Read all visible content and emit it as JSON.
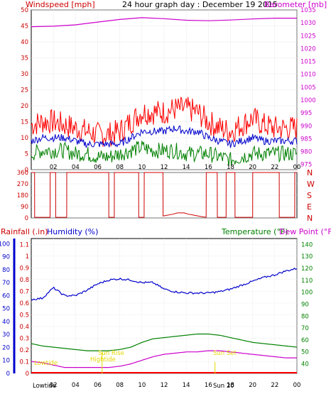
{
  "title": "24 hour graph day : December 19 2015",
  "colors": {
    "wind": "#ff0000",
    "gust": "#ff0000",
    "avg": "#0000cc",
    "low": "#008000",
    "baro": "#cc00cc",
    "dir": "#cc0000",
    "rain": "#ff0000",
    "hum": "#0000cc",
    "temp": "#008000",
    "dew": "#cc00cc",
    "sun": "#e6d800",
    "axis": "#000000",
    "grid": "#ffffff"
  },
  "labels": {
    "windspeed": "Windspeed [mph]",
    "barometer": "Barometer [mb]",
    "rainfall": "Rainfall (.in)",
    "humidity": "Humidity (%)",
    "temperature": "Temperature (°F)",
    "dewpoint": "Dew Point (°F)",
    "compass": [
      "N",
      "W",
      "S",
      "E",
      "N"
    ]
  },
  "markers": {
    "lowtide": "Lowtide",
    "hightide": "Hightide",
    "sun_rise": "Sun Rise",
    "sun_set": "Sun Set",
    "sun_label": "Sun 20"
  },
  "chart_data": [
    {
      "type": "line",
      "title": "24 hour graph day : December 19 2015",
      "x_ticks": [
        "02",
        "04",
        "06",
        "08",
        "10",
        "12",
        "14",
        "16",
        "18",
        "20",
        "22",
        "00"
      ],
      "y_left": {
        "label": "Windspeed [mph]",
        "ticks": [
          "0",
          "5",
          "10",
          "15",
          "20",
          "25",
          "30",
          "35",
          "40",
          "45",
          "50"
        ],
        "range": [
          0,
          50
        ]
      },
      "y_right": {
        "label": "Barometer [mb]",
        "ticks": [
          "975",
          "980",
          "985",
          "990",
          "995",
          "1000",
          "1005",
          "1010",
          "1015",
          "1020",
          "1025",
          "1030",
          "1035"
        ],
        "range": [
          973,
          1035
        ]
      },
      "series": [
        {
          "name": "Windspeed [mph]",
          "role": "gust",
          "x": [
            0,
            1,
            2,
            3,
            4,
            5,
            6,
            7,
            8,
            9,
            10,
            11,
            12,
            13,
            14,
            15,
            16,
            17,
            18,
            19,
            20,
            21,
            22,
            23,
            24
          ],
          "y": [
            14,
            15,
            15,
            14,
            13,
            12,
            11,
            11,
            12,
            15,
            18,
            18,
            18,
            19,
            19,
            18,
            15,
            13,
            12,
            14,
            16,
            14,
            13,
            13,
            13
          ]
        },
        {
          "name": "average",
          "role": "avg",
          "x": [
            0,
            1,
            2,
            3,
            4,
            5,
            6,
            7,
            8,
            9,
            10,
            11,
            12,
            13,
            14,
            15,
            16,
            17,
            18,
            19,
            20,
            21,
            22,
            23,
            24
          ],
          "y": [
            9,
            10,
            10,
            10,
            9,
            8,
            8,
            8,
            8,
            10,
            12,
            12,
            12,
            13,
            12,
            12,
            10,
            9,
            8,
            9,
            10,
            9,
            9,
            9,
            9
          ]
        },
        {
          "name": "low",
          "role": "low",
          "x": [
            0,
            1,
            2,
            3,
            4,
            5,
            6,
            7,
            8,
            9,
            10,
            11,
            12,
            13,
            14,
            15,
            16,
            17,
            18,
            19,
            20,
            21,
            22,
            23,
            24
          ],
          "y": [
            5,
            6,
            6,
            6,
            5,
            5,
            4,
            4,
            5,
            6,
            7,
            6,
            6,
            6,
            5,
            5,
            5,
            4,
            3,
            4,
            5,
            5,
            5,
            5,
            5
          ]
        },
        {
          "name": "Barometer [mb]",
          "role": "baro",
          "x": [
            0,
            2,
            4,
            6,
            8,
            10,
            12,
            14,
            16,
            18,
            20,
            22,
            24
          ],
          "y": [
            1028.5,
            1028.7,
            1029.2,
            1030.3,
            1031.3,
            1032.0,
            1031.6,
            1031.0,
            1030.8,
            1031.1,
            1031.5,
            1031.8,
            1031.8
          ]
        }
      ]
    },
    {
      "type": "line",
      "x_ticks": [
        "02",
        "04",
        "06",
        "08",
        "10",
        "12",
        "14",
        "16",
        "18",
        "20",
        "22",
        "00"
      ],
      "y_left": {
        "ticks": [
          "0",
          "90",
          "180",
          "270",
          "360"
        ],
        "range": [
          0,
          360
        ]
      },
      "y_right": {
        "ticks": [
          "N",
          "W",
          "S",
          "E",
          "N"
        ]
      },
      "series": [
        {
          "name": "wind direction",
          "x": [
            0,
            0.3,
            0.31,
            1.7,
            1.71,
            2.2,
            2.21,
            3.2,
            3.21,
            7.0,
            7.01,
            7.5,
            7.51,
            9.7,
            9.71,
            10.2,
            10.21,
            11.9,
            11.91,
            12.8,
            13.2,
            13.8,
            14.2,
            14.8,
            15.4,
            15.8,
            15.81,
            16.8,
            16.81,
            17.6,
            17.61,
            18.4,
            18.41,
            20.0,
            20.01,
            22.4,
            22.41,
            23.8,
            23.81,
            24
          ],
          "y": [
            360,
            360,
            5,
            5,
            360,
            360,
            5,
            5,
            360,
            360,
            5,
            5,
            360,
            360,
            5,
            5,
            360,
            360,
            15,
            30,
            40,
            40,
            30,
            20,
            10,
            5,
            360,
            360,
            5,
            5,
            360,
            360,
            5,
            5,
            360,
            360,
            5,
            5,
            360,
            360
          ]
        }
      ]
    },
    {
      "type": "line",
      "x_ticks": [
        "02",
        "04",
        "06",
        "08",
        "10",
        "12",
        "14",
        "16",
        "18",
        "20",
        "22",
        "00"
      ],
      "y_rain": {
        "label": "Rainfall (.in)",
        "ticks": [
          "0",
          "0.1",
          "0.2",
          "0.3",
          "0.4",
          "0.5",
          "0.6",
          "0.7",
          "0.8",
          "0.9",
          "1",
          "1.1"
        ],
        "range": [
          0,
          1.15
        ]
      },
      "y_hum": {
        "label": "Humidity (%)",
        "ticks": [
          "0",
          "10",
          "20",
          "30",
          "40",
          "50",
          "60",
          "70",
          "80",
          "90",
          "100"
        ],
        "range": [
          0,
          104
        ]
      },
      "y_temp": {
        "label": "Temperature (°F)",
        "ticks": [
          "40",
          "50",
          "60",
          "70",
          "80",
          "90",
          "100",
          "110",
          "120",
          "130",
          "140"
        ],
        "range": [
          32,
          145
        ]
      },
      "series": [
        {
          "name": "Humidity (%)",
          "x": [
            0,
            1,
            2,
            3,
            4,
            5,
            6,
            7,
            8,
            9,
            10,
            11,
            12,
            13,
            14,
            15,
            16,
            17,
            18,
            19,
            20,
            21,
            22,
            23,
            24
          ],
          "y": [
            57,
            58,
            66,
            60,
            60,
            64,
            69,
            72,
            73,
            72,
            70,
            70,
            65,
            63,
            62,
            62,
            62,
            63,
            65,
            68,
            71,
            74,
            76,
            79,
            81
          ]
        },
        {
          "name": "Temperature (°F)",
          "x": [
            0,
            1,
            2,
            3,
            4,
            5,
            6,
            7,
            8,
            9,
            10,
            11,
            12,
            13,
            14,
            15,
            16,
            17,
            18,
            19,
            20,
            21,
            22,
            23,
            24
          ],
          "y": [
            57,
            55,
            54,
            53,
            52,
            51,
            51,
            51,
            52,
            54,
            58,
            61,
            62,
            63,
            64,
            65,
            65,
            64,
            62,
            60,
            58,
            57,
            56,
            55,
            54
          ]
        },
        {
          "name": "Dew Point (°F)",
          "x": [
            0,
            1,
            2,
            3,
            4,
            5,
            6,
            7,
            8,
            9,
            10,
            11,
            12,
            13,
            14,
            15,
            16,
            17,
            18,
            19,
            20,
            21,
            22,
            23,
            24
          ],
          "y": [
            42,
            41,
            39,
            37,
            37,
            37,
            37,
            37,
            38,
            40,
            43,
            46,
            48,
            49,
            50,
            50,
            51,
            51,
            50,
            49,
            48,
            47,
            46,
            45,
            45
          ]
        },
        {
          "name": "Rainfall (.in)",
          "x": [
            0,
            24
          ],
          "y": [
            0,
            0
          ]
        }
      ]
    }
  ]
}
